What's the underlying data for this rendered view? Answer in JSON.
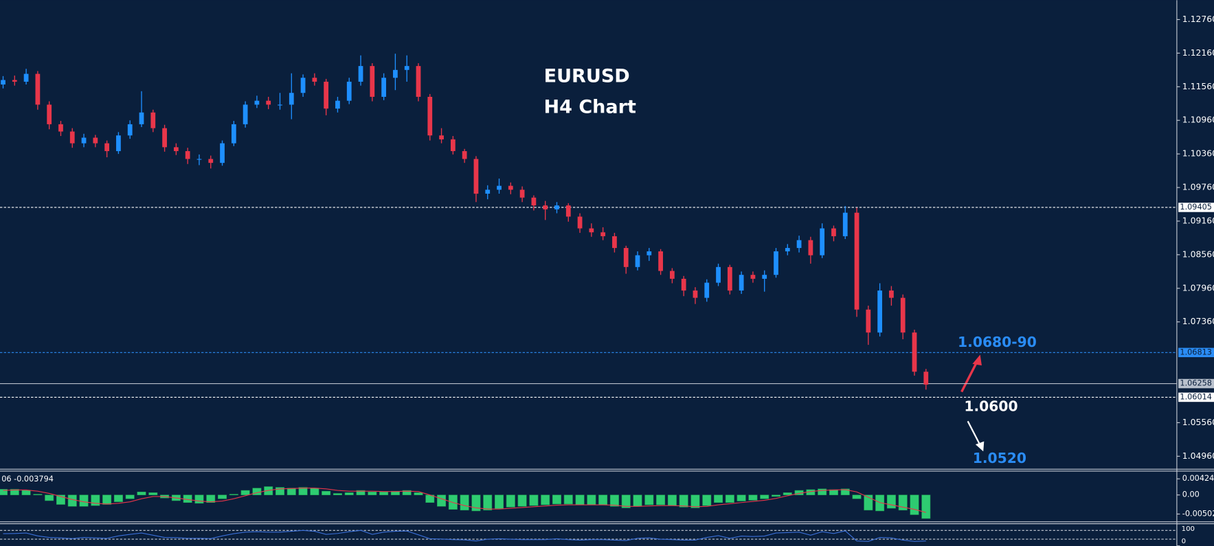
{
  "chart_data": [
    {
      "type": "candlestick",
      "title": "EURUSD",
      "subtitle": "H4 Chart",
      "up_color": "#1e8fff",
      "down_color": "#e8364a",
      "ylim": [
        1.04729,
        1.13106
      ],
      "yticks": [
        {
          "value": 1.1276,
          "label": "1.12760"
        },
        {
          "value": 1.1216,
          "label": "1.12160"
        },
        {
          "value": 1.1156,
          "label": "1.11560"
        },
        {
          "value": 1.1096,
          "label": "1.10960"
        },
        {
          "value": 1.1036,
          "label": "1.10360"
        },
        {
          "value": 1.0976,
          "label": "1.09760"
        },
        {
          "value": 1.0916,
          "label": "1.09160"
        },
        {
          "value": 1.0856,
          "label": "1.08560"
        },
        {
          "value": 1.0796,
          "label": "1.07960"
        },
        {
          "value": 1.0736,
          "label": "1.07360"
        },
        {
          "value": 1.0556,
          "label": "1.05560"
        },
        {
          "value": 1.0496,
          "label": "1.04960"
        }
      ],
      "open": [
        1.116,
        1.1168,
        1.1165,
        1.1179,
        1.1124,
        1.1089,
        1.1076,
        1.1055,
        1.1065,
        1.1055,
        1.1041,
        1.1069,
        1.1089,
        1.111,
        1.1082,
        1.1048,
        1.1041,
        1.1027,
        1.1027,
        1.102,
        1.1055,
        1.1089,
        1.1124,
        1.1131,
        1.1124,
        1.1124,
        1.1145,
        1.1172,
        1.1165,
        1.1117,
        1.1131,
        1.1165,
        1.1193,
        1.1138,
        1.1172,
        1.1186,
        1.1193,
        1.1138,
        1.1069,
        1.1062,
        1.1041,
        1.1027,
        1.0965,
        1.0972,
        1.0979,
        1.0972,
        1.0958,
        1.0944,
        1.0937,
        1.0944,
        1.0924,
        1.0903,
        1.0896,
        1.0889,
        1.0868,
        1.0834,
        1.0855,
        1.0862,
        1.0827,
        1.0813,
        1.0792,
        1.0779,
        1.0806,
        1.0834,
        1.0792,
        1.082,
        1.0813,
        1.082,
        1.0862,
        1.0868,
        1.0882,
        1.0855,
        1.0903,
        1.0889,
        1.0931,
        1.0758,
        1.0717,
        1.0792,
        1.0779,
        1.0717,
        1.0647
      ],
      "high": [
        1.1175,
        1.1176,
        1.1188,
        1.1184,
        1.113,
        1.1095,
        1.1082,
        1.1072,
        1.107,
        1.106,
        1.1075,
        1.1096,
        1.1148,
        1.1115,
        1.1088,
        1.1055,
        1.1047,
        1.1035,
        1.1033,
        1.106,
        1.1095,
        1.113,
        1.114,
        1.1138,
        1.1145,
        1.118,
        1.1178,
        1.118,
        1.117,
        1.1138,
        1.1172,
        1.1212,
        1.1198,
        1.118,
        1.1215,
        1.1212,
        1.1198,
        1.1143,
        1.1082,
        1.1068,
        1.1045,
        1.1032,
        1.098,
        1.0992,
        1.0985,
        1.0978,
        1.0962,
        1.0952,
        1.095,
        1.0948,
        1.093,
        1.0912,
        1.0905,
        1.0895,
        1.0872,
        1.0862,
        1.0868,
        1.0866,
        1.0832,
        1.0818,
        1.0798,
        1.0812,
        1.084,
        1.0838,
        1.0826,
        1.0826,
        1.0828,
        1.0868,
        1.0875,
        1.089,
        1.0888,
        1.0912,
        1.0908,
        1.0943,
        1.094,
        1.0765,
        1.0805,
        1.08,
        1.0785,
        1.0722,
        1.0652
      ],
      "low": [
        1.1153,
        1.1158,
        1.116,
        1.1115,
        1.108,
        1.1068,
        1.1047,
        1.1048,
        1.1048,
        1.103,
        1.1036,
        1.1063,
        1.1084,
        1.1075,
        1.104,
        1.1034,
        1.1018,
        1.1016,
        1.101,
        1.1015,
        1.105,
        1.1083,
        1.1118,
        1.1116,
        1.1115,
        1.1098,
        1.1138,
        1.1158,
        1.1105,
        1.111,
        1.1125,
        1.1158,
        1.113,
        1.1132,
        1.115,
        1.1165,
        1.113,
        1.106,
        1.1055,
        1.1035,
        1.102,
        1.095,
        1.0955,
        1.0965,
        1.0964,
        1.095,
        1.0935,
        1.0918,
        1.093,
        1.0915,
        1.0895,
        1.0888,
        1.0882,
        1.086,
        1.0822,
        1.0828,
        1.0845,
        1.082,
        1.0805,
        1.0782,
        1.0768,
        1.0772,
        1.08,
        1.0785,
        1.0786,
        1.0806,
        1.079,
        1.0815,
        1.0855,
        1.086,
        1.084,
        1.085,
        1.088,
        1.0884,
        1.0745,
        1.0695,
        1.071,
        1.0765,
        1.0705,
        1.064,
        1.0615
      ],
      "close": [
        1.1168,
        1.1165,
        1.1179,
        1.1124,
        1.1089,
        1.1076,
        1.1055,
        1.1065,
        1.1055,
        1.1041,
        1.1069,
        1.1089,
        1.111,
        1.1082,
        1.1048,
        1.1041,
        1.1027,
        1.1027,
        1.102,
        1.1055,
        1.1089,
        1.1124,
        1.1131,
        1.1124,
        1.1124,
        1.1145,
        1.1172,
        1.1165,
        1.1117,
        1.1131,
        1.1165,
        1.1193,
        1.1138,
        1.1172,
        1.1186,
        1.1193,
        1.1138,
        1.1069,
        1.1062,
        1.1041,
        1.1027,
        1.0965,
        1.0972,
        1.0979,
        1.0972,
        1.0958,
        1.0944,
        1.0937,
        1.0944,
        1.0924,
        1.0903,
        1.0896,
        1.0889,
        1.0868,
        1.0834,
        1.0855,
        1.0862,
        1.0827,
        1.0813,
        1.0792,
        1.0779,
        1.0806,
        1.0834,
        1.0792,
        1.082,
        1.0813,
        1.082,
        1.0862,
        1.0868,
        1.0882,
        1.0855,
        1.0903,
        1.0889,
        1.0931,
        1.0758,
        1.0717,
        1.0792,
        1.0779,
        1.0717,
        1.0647,
        1.0624
      ],
      "levels": [
        {
          "value": 1.09405,
          "color": "#ffffff",
          "style": "dashed"
        },
        {
          "value": 1.06813,
          "color": "#2a8cf5",
          "style": "dashed"
        },
        {
          "value": 1.06258,
          "color": "#b8c0cc",
          "style": "solid"
        },
        {
          "value": 1.06014,
          "color": "#ffffff",
          "style": "dashed"
        }
      ],
      "annotations": [
        {
          "text": "1.0680-90",
          "color": "#2a8cf5"
        },
        {
          "text": "1.0600",
          "color": "#ffffff"
        },
        {
          "text": "1.0520",
          "color": "#2a8cf5"
        }
      ]
    },
    {
      "type": "bar",
      "title": "06 -0.003794",
      "ylim": [
        -0.00707,
        0.00627
      ],
      "yticks": [
        0.00424,
        {
          "value": 0,
          "label": "0.00"
        },
        -0.00502
      ],
      "series": [
        {
          "type": "bar",
          "color": "#2ecc71",
          "values": [
            0.0015,
            0.0015,
            0.0012,
            0.0002,
            -0.0015,
            -0.0025,
            -0.003,
            -0.003,
            -0.0028,
            -0.0025,
            -0.0018,
            -0.001,
            0.0008,
            0.0006,
            -0.0008,
            -0.0015,
            -0.002,
            -0.0022,
            -0.002,
            -0.001,
            0.0002,
            0.0012,
            0.0018,
            0.0022,
            0.002,
            0.0018,
            0.002,
            0.0018,
            0.001,
            0.0004,
            0.0006,
            0.0012,
            0.0008,
            0.0008,
            0.001,
            0.0012,
            0.0006,
            -0.002,
            -0.003,
            -0.0038,
            -0.004,
            -0.0042,
            -0.004,
            -0.0036,
            -0.0032,
            -0.003,
            -0.0028,
            -0.0026,
            -0.0024,
            -0.0024,
            -0.0026,
            -0.0026,
            -0.0026,
            -0.003,
            -0.0034,
            -0.003,
            -0.0026,
            -0.0026,
            -0.0028,
            -0.0032,
            -0.0034,
            -0.0028,
            -0.002,
            -0.002,
            -0.0016,
            -0.0014,
            -0.001,
            -0.0004,
            0.0006,
            0.0012,
            0.0014,
            0.0016,
            0.0014,
            0.0016,
            -0.001,
            -0.004,
            -0.0042,
            -0.0035,
            -0.004,
            -0.0052,
            -0.0062
          ]
        },
        {
          "type": "line",
          "color": "#e8364a",
          "values": [
            0.0012,
            0.0013,
            0.0013,
            0.001,
            0.0004,
            -0.0004,
            -0.0012,
            -0.0018,
            -0.0022,
            -0.0024,
            -0.0022,
            -0.0018,
            -0.001,
            -0.0004,
            -0.0004,
            -0.0008,
            -0.0012,
            -0.0016,
            -0.0018,
            -0.0016,
            -0.001,
            -0.0002,
            0.0006,
            0.0012,
            0.0016,
            0.0017,
            0.0018,
            0.0018,
            0.0016,
            0.0012,
            0.001,
            0.001,
            0.001,
            0.0009,
            0.0009,
            0.001,
            0.0009,
            0.0,
            -0.001,
            -0.002,
            -0.0028,
            -0.0034,
            -0.0037,
            -0.0037,
            -0.0035,
            -0.0033,
            -0.0031,
            -0.0029,
            -0.0027,
            -0.0026,
            -0.0026,
            -0.0026,
            -0.0026,
            -0.0027,
            -0.003,
            -0.003,
            -0.0029,
            -0.0028,
            -0.0028,
            -0.0029,
            -0.0031,
            -0.003,
            -0.0026,
            -0.0023,
            -0.002,
            -0.0017,
            -0.0014,
            -0.0009,
            -0.0002,
            0.0004,
            0.0009,
            0.0012,
            0.0013,
            0.0014,
            0.0008,
            -0.0006,
            -0.002,
            -0.0026,
            -0.0032,
            -0.0038,
            -0.0046
          ]
        }
      ]
    },
    {
      "type": "line",
      "ylim": [
        0,
        100
      ],
      "yticks": [
        100,
        0
      ],
      "levels": [
        70,
        30
      ],
      "color": "#3a6fd8",
      "values": [
        55,
        56,
        58,
        45,
        38,
        36,
        33,
        38,
        36,
        34,
        45,
        52,
        58,
        48,
        38,
        37,
        34,
        34,
        33,
        45,
        55,
        62,
        64,
        62,
        62,
        66,
        70,
        66,
        52,
        56,
        64,
        70,
        52,
        62,
        66,
        67,
        50,
        32,
        31,
        28,
        27,
        22,
        30,
        32,
        30,
        28,
        28,
        28,
        32,
        28,
        26,
        28,
        28,
        26,
        24,
        34,
        36,
        30,
        28,
        26,
        26,
        38,
        46,
        34,
        44,
        42,
        44,
        58,
        60,
        62,
        48,
        64,
        56,
        68,
        22,
        20,
        38,
        36,
        26,
        20,
        22
      ]
    }
  ]
}
